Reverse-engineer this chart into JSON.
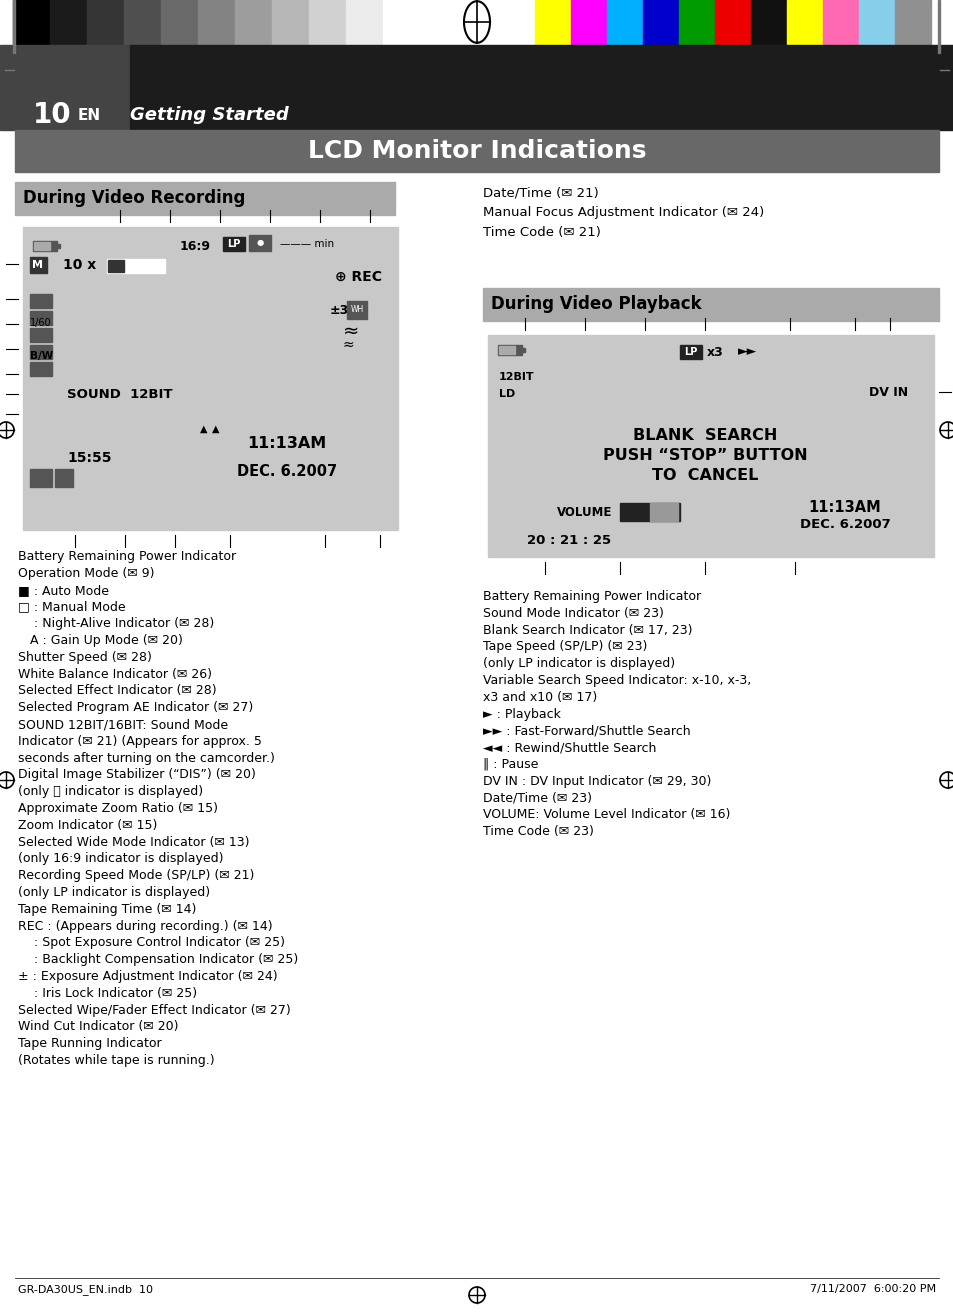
{
  "page_num": "10",
  "page_label": "EN",
  "page_subtitle": "Getting Started",
  "footer_left": "GR-DA30US_EN.indb  10",
  "footer_right": "7/11/2007  6:00:20 PM",
  "main_title": "LCD Monitor Indications",
  "section1_title": "During Video Recording",
  "section2_title": "During Video Playback",
  "right_col_top": [
    "Date/Time (✉ 21)",
    "Manual Focus Adjustment Indicator (✉ 24)",
    "Time Code (✉ 21)"
  ],
  "left_col_items": [
    "Battery Remaining Power Indicator",
    "Operation Mode (✉ 9)",
    "■ : Auto Mode",
    "□ : Manual Mode",
    "    : Night-Alive Indicator (✉ 28)",
    "   A : Gain Up Mode (✉ 20)",
    "Shutter Speed (✉ 28)",
    "White Balance Indicator (✉ 26)",
    "Selected Effect Indicator (✉ 28)",
    "Selected Program AE Indicator (✉ 27)",
    "SOUND 12BIT/16BIT: Sound Mode",
    "Indicator (✉ 21) (Appears for approx. 5",
    "seconds after turning on the camcorder.)",
    "Digital Image Stabilizer (“DIS”) (✉ 20)",
    "(only Ⓝ indicator is displayed)",
    "Approximate Zoom Ratio (✉ 15)",
    "Zoom Indicator (✉ 15)",
    "Selected Wide Mode Indicator (✉ 13)",
    "(only 16:9 indicator is displayed)",
    "Recording Speed Mode (SP/LP) (✉ 21)",
    "(only LP indicator is displayed)",
    "Tape Remaining Time (✉ 14)",
    "REC : (Appears during recording.) (✉ 14)",
    "    : Spot Exposure Control Indicator (✉ 25)",
    "    : Backlight Compensation Indicator (✉ 25)",
    "± : Exposure Adjustment Indicator (✉ 24)",
    "    : Iris Lock Indicator (✉ 25)",
    "Selected Wipe/Fader Effect Indicator (✉ 27)",
    "Wind Cut Indicator (✉ 20)",
    "Tape Running Indicator",
    "(Rotates while tape is running.)"
  ],
  "right_col_bottom": [
    "Battery Remaining Power Indicator",
    "Sound Mode Indicator (✉ 23)",
    "Blank Search Indicator (✉ 17, 23)",
    "Tape Speed (SP/LP) (✉ 23)",
    "(only LP indicator is displayed)",
    "Variable Search Speed Indicator: x-10, x-3,",
    "x3 and x10 (✉ 17)",
    "► : Playback",
    "►► : Fast-Forward/Shuttle Search",
    "◄◄ : Rewind/Shuttle Search",
    "‖ : Pause",
    "DV IN : DV Input Indicator (✉ 29, 30)",
    "Date/Time (✉ 23)",
    "VOLUME: Volume Level Indicator (✉ 16)",
    "Time Code (✉ 23)"
  ],
  "gray_bars": [
    "#000000",
    "#1b1b1b",
    "#353535",
    "#4f4f4f",
    "#696969",
    "#838383",
    "#9d9d9d",
    "#b7b7b7",
    "#d1d1d1",
    "#ebebeb",
    "#ffffff"
  ],
  "color_bars": [
    "#ffff00",
    "#ff00ff",
    "#00b0ff",
    "#0000cc",
    "#009900",
    "#ee0000",
    "#111111",
    "#ffff00",
    "#ff69b4",
    "#87ceeb",
    "#909090"
  ],
  "header_bg": "#1c1c1c",
  "header_side_bg": "#4a4a4a",
  "title_bar_bg": "#686868",
  "section_bar_bg": "#aaaaaa",
  "lcd_screen_bg": "#c8c8c8",
  "lcd_border_color": "#888888",
  "body_bg": "#ffffff"
}
